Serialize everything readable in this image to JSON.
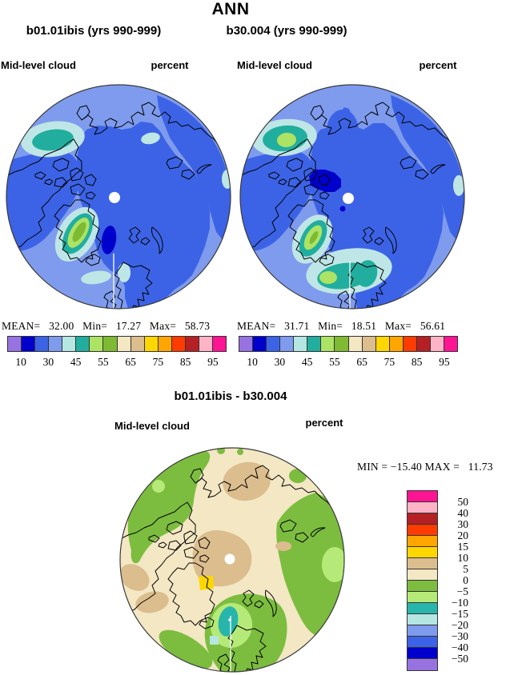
{
  "page_title": "ANN",
  "panels": [
    {
      "title": "b01.01ibis (yrs 990-999)",
      "field": "Mid-level cloud",
      "units": "percent",
      "stats": "MEAN=   32.00   Min=   17.27   Max=   58.73"
    },
    {
      "title": "b30.004 (yrs 990-999)",
      "field": "Mid-level cloud",
      "units": "percent",
      "stats": "MEAN=   31.71   Min=   18.51   Max=   56.61"
    }
  ],
  "diff": {
    "title": "b01.01ibis - b30.004",
    "field": "Mid-level cloud",
    "units": "percent",
    "minmax": "MIN = −15.40 MAX =   11.73"
  },
  "colorbar": {
    "colors": [
      "#9673e0",
      "#0000cd",
      "#3c63e6",
      "#7e9bed",
      "#b4e6e2",
      "#21ae9e",
      "#ace364",
      "#7fba33",
      "#f3e7c4",
      "#dcbd8e",
      "#ffd700",
      "#ffa500",
      "#fe3b00",
      "#b52025",
      "#ffb3c6",
      "#ff1493"
    ],
    "labels": [
      "10",
      "30",
      "45",
      "55",
      "65",
      "75",
      "85",
      "95"
    ],
    "label_boundaries": [
      1,
      3,
      5,
      7,
      9,
      11,
      13,
      15
    ]
  },
  "diff_colorbar": {
    "colors": [
      "#ff1493",
      "#ffb3c6",
      "#b52025",
      "#fe3b00",
      "#ffa500",
      "#ffd700",
      "#dcbd8e",
      "#f3e7c4",
      "#7cbd3f",
      "#b6ea78",
      "#28b5ab",
      "#b4e6e2",
      "#7e9bed",
      "#3c63e6",
      "#0000cd",
      "#9673e0"
    ],
    "labels": [
      "50",
      "40",
      "30",
      "20",
      "15",
      "10",
      "5",
      "0",
      "−5",
      "−10",
      "−15",
      "−20",
      "−30",
      "−40",
      "−50"
    ]
  },
  "map_palette": {
    "base": "#7e9bed",
    "royal": "#3c63e6",
    "navy": "#0000cd",
    "palecyan": "#bfe6e6",
    "teal": "#21ae9e",
    "lightgreen": "#ace364",
    "green": "#7fba33",
    "beige": "#f3e7c4",
    "tan": "#dcbd8e",
    "yellow": "#ffd700",
    "dgreen": "#7cbd3f",
    "dlightgreen": "#b6ea78",
    "dteal": "#28b5ab",
    "dcyan": "#b4e6e2",
    "pole": "#ffffff"
  },
  "chart_data": [
    {
      "type": "heatmap",
      "title": "b01.01ibis (yrs 990-999)",
      "variable": "Mid-level cloud",
      "units": "percent",
      "projection": "north polar stereographic",
      "stats": {
        "mean": 32.0,
        "min": 17.27,
        "max": 58.73
      },
      "contour_levels": [
        10,
        20,
        30,
        40,
        45,
        50,
        55,
        60,
        65,
        70,
        75,
        80,
        85,
        90,
        95
      ],
      "legend_tick_labels": [
        10,
        30,
        45,
        55,
        65,
        75,
        85,
        95
      ]
    },
    {
      "type": "heatmap",
      "title": "b30.004 (yrs 990-999)",
      "variable": "Mid-level cloud",
      "units": "percent",
      "projection": "north polar stereographic",
      "stats": {
        "mean": 31.71,
        "min": 18.51,
        "max": 56.61
      },
      "contour_levels": [
        10,
        20,
        30,
        40,
        45,
        50,
        55,
        60,
        65,
        70,
        75,
        80,
        85,
        90,
        95
      ],
      "legend_tick_labels": [
        10,
        30,
        45,
        55,
        65,
        75,
        85,
        95
      ]
    },
    {
      "type": "heatmap",
      "title": "b01.01ibis - b30.004",
      "variable": "Mid-level cloud",
      "units": "percent",
      "projection": "north polar stereographic",
      "stats": {
        "min": -15.4,
        "max": 11.73
      },
      "contour_levels": [
        -50,
        -40,
        -30,
        -20,
        -15,
        -10,
        -5,
        0,
        5,
        10,
        15,
        20,
        30,
        40,
        50
      ],
      "legend_position": "right"
    }
  ]
}
